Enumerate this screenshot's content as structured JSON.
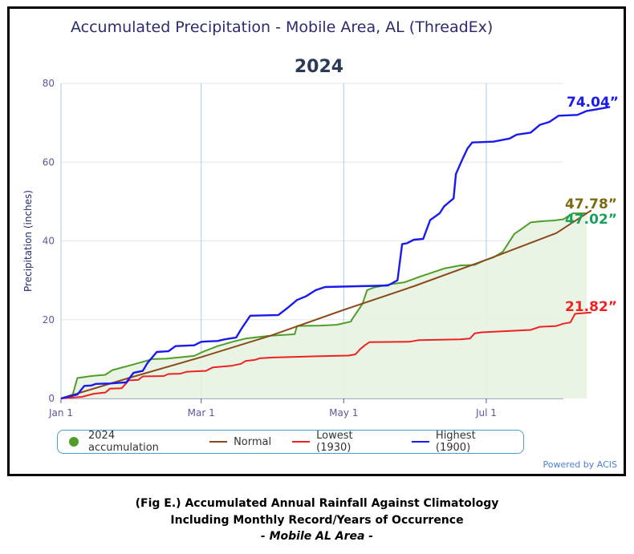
{
  "header": {
    "title": "Accumulated Precipitation - Mobile Area, AL (ThreadEx)",
    "subtitle": "2024",
    "powered_by": "Powered by ACIS"
  },
  "caption": {
    "line1": "(Fig E.) Accumulated Annual Rainfall Against  Climatology",
    "line2": "Including Monthly Record/Years of Occurrence",
    "line3": "- Mobile AL Area -"
  },
  "end_labels": {
    "highest": "74.04”",
    "normal": "47.78”",
    "accum": "47.02”",
    "lowest": "21.82”"
  },
  "chart_data": {
    "type": "line",
    "title": "2024",
    "ylabel": "Precipitation (inches)",
    "xlabel": "",
    "ylim": [
      0,
      80
    ],
    "yticks": [
      0,
      20,
      40,
      60,
      80
    ],
    "x_unit": "day of year",
    "xlim": [
      1,
      216
    ],
    "xticks": [
      {
        "label": "Jan 1",
        "x": 1
      },
      {
        "label": "Mar 1",
        "x": 61
      },
      {
        "label": "May 1",
        "x": 122
      },
      {
        "label": "Jul 1",
        "x": 183
      }
    ],
    "grid": true,
    "legend_position": "bottom",
    "series": [
      {
        "name": "2024 accumulation",
        "color": "#4f9e29",
        "fill": true,
        "points": [
          [
            1,
            0
          ],
          [
            6,
            1
          ],
          [
            8,
            5.2
          ],
          [
            14,
            5.7
          ],
          [
            20,
            6
          ],
          [
            23,
            7.2
          ],
          [
            30,
            8.3
          ],
          [
            36,
            9.3
          ],
          [
            40,
            10
          ],
          [
            46,
            10.1
          ],
          [
            58,
            10.8
          ],
          [
            62,
            11.9
          ],
          [
            68,
            13.3
          ],
          [
            75,
            14.5
          ],
          [
            80,
            15.2
          ],
          [
            90,
            15.9
          ],
          [
            101,
            16.3
          ],
          [
            102,
            18.4
          ],
          [
            112,
            18.5
          ],
          [
            119,
            18.7
          ],
          [
            125,
            19.5
          ],
          [
            126,
            20.5
          ],
          [
            130,
            24
          ],
          [
            132,
            27.5
          ],
          [
            135,
            28.2
          ],
          [
            142,
            29
          ],
          [
            148,
            29.5
          ],
          [
            154,
            30.8
          ],
          [
            160,
            32
          ],
          [
            165,
            33
          ],
          [
            172,
            33.8
          ],
          [
            178,
            33.9
          ],
          [
            182,
            35
          ],
          [
            186,
            35.8
          ],
          [
            190,
            37.2
          ],
          [
            192,
            39
          ],
          [
            195,
            41.8
          ],
          [
            198,
            43
          ],
          [
            202,
            44.7
          ],
          [
            207,
            45
          ],
          [
            212,
            45.2
          ],
          [
            216,
            45.5
          ],
          [
            220,
            47
          ],
          [
            226,
            47.02
          ]
        ]
      },
      {
        "name": "Normal",
        "color": "#8b4a1c",
        "points": [
          [
            1,
            0
          ],
          [
            30,
            5.2
          ],
          [
            61,
            10.5
          ],
          [
            91,
            16
          ],
          [
            122,
            22.5
          ],
          [
            152,
            28.5
          ],
          [
            183,
            35.2
          ],
          [
            213,
            42
          ],
          [
            228,
            47.78
          ]
        ]
      },
      {
        "name": "Lowest (1930)",
        "color": "#ee2222",
        "points": [
          [
            1,
            0
          ],
          [
            10,
            0.4
          ],
          [
            15,
            1.2
          ],
          [
            20,
            1.5
          ],
          [
            22,
            2.5
          ],
          [
            27,
            2.6
          ],
          [
            30,
            4.6
          ],
          [
            34,
            4.7
          ],
          [
            36,
            5.6
          ],
          [
            45,
            5.7
          ],
          [
            47,
            6.2
          ],
          [
            52,
            6.3
          ],
          [
            55,
            6.8
          ],
          [
            63,
            7
          ],
          [
            66,
            7.9
          ],
          [
            74,
            8.3
          ],
          [
            78,
            8.8
          ],
          [
            80,
            9.5
          ],
          [
            84,
            9.8
          ],
          [
            86,
            10.2
          ],
          [
            92,
            10.4
          ],
          [
            110,
            10.7
          ],
          [
            124,
            10.9
          ],
          [
            127,
            11.2
          ],
          [
            129,
            12.5
          ],
          [
            131,
            13.5
          ],
          [
            133,
            14.3
          ],
          [
            150,
            14.4
          ],
          [
            154,
            14.8
          ],
          [
            172,
            15
          ],
          [
            176,
            15.2
          ],
          [
            178,
            16.5
          ],
          [
            181,
            16.8
          ],
          [
            188,
            17
          ],
          [
            195,
            17.2
          ],
          [
            202,
            17.4
          ],
          [
            206,
            18.2
          ],
          [
            213,
            18.4
          ],
          [
            216,
            19
          ],
          [
            219,
            19.3
          ],
          [
            221,
            21.5
          ],
          [
            228,
            21.82
          ]
        ]
      },
      {
        "name": "Highest (1900)",
        "color": "#1a1aee",
        "points": [
          [
            1,
            0
          ],
          [
            8,
            1
          ],
          [
            11,
            3.2
          ],
          [
            14,
            3.3
          ],
          [
            16,
            3.7
          ],
          [
            22,
            3.8
          ],
          [
            26,
            4
          ],
          [
            29,
            4.1
          ],
          [
            32,
            6.5
          ],
          [
            36,
            7
          ],
          [
            38,
            9
          ],
          [
            42,
            11.8
          ],
          [
            47,
            12
          ],
          [
            50,
            13.3
          ],
          [
            58,
            13.5
          ],
          [
            61,
            14.4
          ],
          [
            64,
            14.5
          ],
          [
            68,
            14.6
          ],
          [
            71,
            15
          ],
          [
            76,
            15.5
          ],
          [
            78,
            17.5
          ],
          [
            82,
            21
          ],
          [
            94,
            21.2
          ],
          [
            98,
            23
          ],
          [
            102,
            25
          ],
          [
            106,
            26
          ],
          [
            110,
            27.5
          ],
          [
            114,
            28.3
          ],
          [
            128,
            28.5
          ],
          [
            136,
            28.6
          ],
          [
            141,
            28.7
          ],
          [
            145,
            30
          ],
          [
            147,
            39.2
          ],
          [
            149,
            39.4
          ],
          [
            152,
            40.3
          ],
          [
            156,
            40.5
          ],
          [
            159,
            45.3
          ],
          [
            163,
            47
          ],
          [
            165,
            48.8
          ],
          [
            169,
            50.8
          ],
          [
            170,
            57
          ],
          [
            173,
            61
          ],
          [
            175,
            63.5
          ],
          [
            177,
            65
          ],
          [
            186,
            65.2
          ],
          [
            193,
            66
          ],
          [
            196,
            67
          ],
          [
            202,
            67.5
          ],
          [
            206,
            69.5
          ],
          [
            210,
            70.2
          ],
          [
            214,
            71.8
          ],
          [
            222,
            72
          ],
          [
            226,
            73
          ],
          [
            231,
            73.5
          ],
          [
            236,
            74.04
          ]
        ]
      }
    ]
  }
}
